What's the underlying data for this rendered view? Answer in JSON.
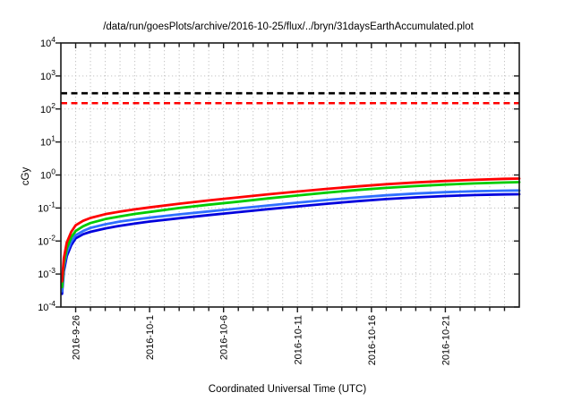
{
  "chart_data": {
    "type": "line",
    "title": "/data/run/goesPlots/archive/2016-10-25/flux/../bryn/31daysEarthAccumulated.plot",
    "xlabel": "Coordinated Universal Time (UTC)",
    "ylabel": "cGy",
    "x_axis": {
      "kind": "time",
      "start_day_label": "2016-9-25",
      "span_days": 31,
      "minor_tick_every_days": 1,
      "major_ticks": [
        {
          "day": 1,
          "label": "2016-9-26"
        },
        {
          "day": 6,
          "label": "2016-10-1"
        },
        {
          "day": 11,
          "label": "2016-10-6"
        },
        {
          "day": 16,
          "label": "2016-10-11"
        },
        {
          "day": 21,
          "label": "2016-10-16"
        },
        {
          "day": 26,
          "label": "2016-10-21"
        }
      ]
    },
    "y_axis": {
      "scale": "log10",
      "unit": "cGy",
      "min_exponent": -4,
      "max_exponent": 4,
      "tick_exponents": [
        4,
        3,
        2,
        1,
        0,
        -1,
        -2,
        -3,
        -4
      ]
    },
    "grid": {
      "x": "dotted every day",
      "y": "dotted every decade"
    },
    "thresholds": [
      {
        "name": "black-limit-line",
        "value_cGy": 300,
        "color": "#000000",
        "style": "dashed"
      },
      {
        "name": "red-limit-line",
        "value_cGy": 150,
        "color": "#ff0000",
        "style": "dashed"
      }
    ],
    "x_days": [
      0.08,
      0.2,
      0.4,
      0.7,
      1,
      1.5,
      2,
      3,
      4,
      5,
      6,
      8,
      10,
      12,
      14,
      16,
      18,
      20,
      22,
      24,
      26,
      28,
      30,
      31
    ],
    "series": [
      {
        "name": "blue-curve",
        "color": "#0000dd",
        "values": [
          0.00025,
          0.0012,
          0.0035,
          0.0075,
          0.012,
          0.016,
          0.019,
          0.024,
          0.029,
          0.034,
          0.039,
          0.049,
          0.061,
          0.075,
          0.092,
          0.112,
          0.135,
          0.16,
          0.186,
          0.21,
          0.231,
          0.247,
          0.258,
          0.262
        ]
      },
      {
        "name": "light-blue-curve",
        "color": "#2f6fff",
        "values": [
          0.0003,
          0.0016,
          0.0045,
          0.0095,
          0.015,
          0.02,
          0.025,
          0.032,
          0.039,
          0.045,
          0.051,
          0.064,
          0.079,
          0.097,
          0.119,
          0.145,
          0.175,
          0.208,
          0.242,
          0.274,
          0.301,
          0.322,
          0.336,
          0.34
        ]
      },
      {
        "name": "green-curve",
        "color": "#00cc00",
        "values": [
          0.0004,
          0.002,
          0.006,
          0.013,
          0.02,
          0.028,
          0.035,
          0.046,
          0.056,
          0.066,
          0.076,
          0.1,
          0.126,
          0.156,
          0.195,
          0.24,
          0.293,
          0.35,
          0.408,
          0.462,
          0.512,
          0.555,
          0.592,
          0.605
        ]
      },
      {
        "name": "red-curve",
        "color": "#ff0000",
        "values": [
          0.0006,
          0.003,
          0.009,
          0.019,
          0.03,
          0.041,
          0.05,
          0.065,
          0.078,
          0.091,
          0.104,
          0.135,
          0.17,
          0.21,
          0.26,
          0.315,
          0.38,
          0.45,
          0.525,
          0.595,
          0.66,
          0.715,
          0.765,
          0.78
        ]
      }
    ],
    "colors": {
      "background": "#ffffff",
      "grid": "#c3c3c3",
      "axis": "#1a1a1a",
      "text": "#000000"
    }
  }
}
